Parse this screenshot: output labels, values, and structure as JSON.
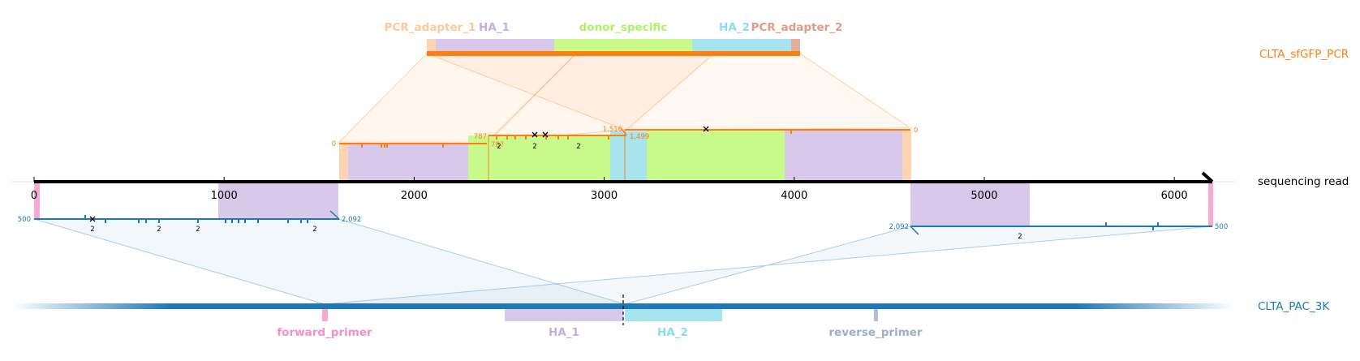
{
  "colors": {
    "pcr": "#ff7f0e",
    "pac": "#1f77b4",
    "adapter": "#fbd5b2",
    "adapter2": "#dfb0a0",
    "ha1": "#d8c8ea",
    "donor": "#c8fa8c",
    "ha2": "#a8e4ee",
    "forward_primer": "#f9a8d4",
    "reverse_primer": "#b0bfd8",
    "read": "#000000"
  },
  "tracks": {
    "pcr_label": "CLTA_sfGFP_PCR",
    "read_label": "sequencing read",
    "pac_label": "CLTA_PAC_3K"
  },
  "pcr_features": [
    {
      "name": "PCR_adapter_1",
      "color": "#fbc99a"
    },
    {
      "name": "HA_1",
      "color": "#c4aee6"
    },
    {
      "name": "donor_specific",
      "color": "#aef26a"
    },
    {
      "name": "HA_2",
      "color": "#8cdcec"
    },
    {
      "name": "PCR_adapter_2",
      "color": "#e59a88"
    }
  ],
  "pac_features": [
    {
      "name": "forward_primer",
      "color": "#f58fc8"
    },
    {
      "name": "HA_1",
      "color": "#c4aee6"
    },
    {
      "name": "HA_2",
      "color": "#8cdcec"
    },
    {
      "name": "reverse_primer",
      "color": "#9aaed0"
    }
  ],
  "read_axis": {
    "min": 0,
    "max": 6200,
    "ticks": [
      "0",
      "1000",
      "2000",
      "3000",
      "4000",
      "5000",
      "6000"
    ]
  },
  "alignment_labels": {
    "pcr_seg1_start": "0",
    "pcr_seg1_end": "787",
    "pcr_seg2_start": "787",
    "pcr_seg2_end": "1,499",
    "pcr_seg3_start": "1,516",
    "pcr_seg3_end": "0",
    "pac_left_start": "500",
    "pac_left_end": "2,092",
    "pac_right_start": "2,092",
    "pac_right_end": "500"
  },
  "indel_counts": [
    "2",
    "2",
    "2",
    "2",
    "2",
    "2",
    "2"
  ]
}
